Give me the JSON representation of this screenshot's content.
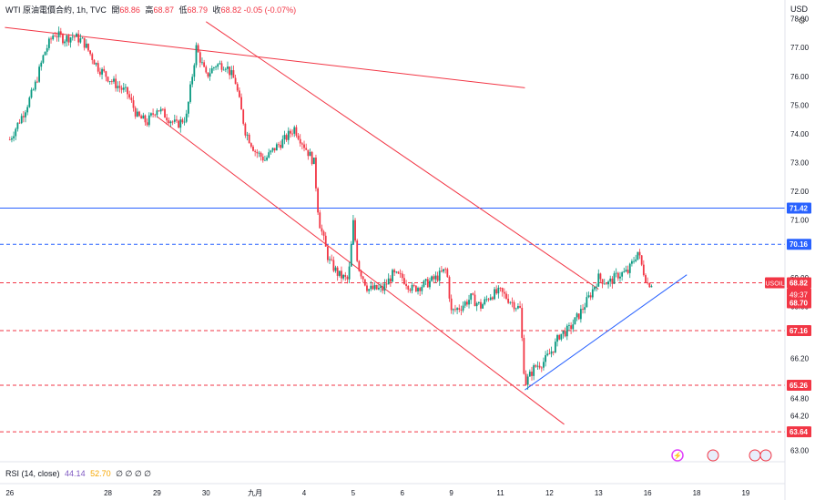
{
  "legend": {
    "symbol": "WTI 原油電價合約, 1h, TVC",
    "open_label": "開",
    "open": "68.86",
    "high_label": "高",
    "high": "68.87",
    "low_label": "低",
    "low": "68.79",
    "close_label": "收",
    "close": "68.82",
    "change": "-0.05 (-0.07%)"
  },
  "currency": "USD",
  "rsi": {
    "label": "RSI (14, close)",
    "value": "44.14",
    "ma": "52.70",
    "zeros": "∅ ∅ ∅ ∅"
  },
  "colors": {
    "up": "#089981",
    "down": "#f23645",
    "trend": "#f23645",
    "support": "#2962ff",
    "level_blue": "#2962ff"
  },
  "chart_data": {
    "type": "candlestick",
    "title": "WTI 原油電價合約, 1h, TVC",
    "ylim": [
      62.6,
      78.4
    ],
    "y_ticks": [
      "78.00",
      "77.00",
      "76.00",
      "75.00",
      "74.00",
      "73.00",
      "72.00",
      "71.00",
      "69.00",
      "68.00",
      "66.20",
      "64.80",
      "64.20",
      "63.00"
    ],
    "x_labels": [
      {
        "label": "26",
        "x": 0
      },
      {
        "label": "28",
        "x": 2
      },
      {
        "label": "29",
        "x": 3
      },
      {
        "label": "30",
        "x": 4
      },
      {
        "label": "九月",
        "x": 5
      },
      {
        "label": "4",
        "x": 6
      },
      {
        "label": "5",
        "x": 7
      },
      {
        "label": "6",
        "x": 8
      },
      {
        "label": "9",
        "x": 9
      },
      {
        "label": "11",
        "x": 10
      },
      {
        "label": "12",
        "x": 11
      },
      {
        "label": "13",
        "x": 12
      },
      {
        "label": "16",
        "x": 13
      },
      {
        "label": "18",
        "x": 14
      },
      {
        "label": "19",
        "x": 15
      }
    ],
    "price_path": [
      [
        0.0,
        73.8
      ],
      [
        0.3,
        74.8
      ],
      [
        0.5,
        75.6
      ],
      [
        0.7,
        76.8
      ],
      [
        0.9,
        77.5
      ],
      [
        1.1,
        77.3
      ],
      [
        1.3,
        77.4
      ],
      [
        1.5,
        77.2
      ],
      [
        1.8,
        76.3
      ],
      [
        2.1,
        75.8
      ],
      [
        2.4,
        75.4
      ],
      [
        2.6,
        74.6
      ],
      [
        2.8,
        74.4
      ],
      [
        3.0,
        74.9
      ],
      [
        3.2,
        74.6
      ],
      [
        3.4,
        74.3
      ],
      [
        3.6,
        74.6
      ],
      [
        3.8,
        77.0
      ],
      [
        4.0,
        76.0
      ],
      [
        4.2,
        76.4
      ],
      [
        4.4,
        76.4
      ],
      [
        4.6,
        75.8
      ],
      [
        4.8,
        74.1
      ],
      [
        5.0,
        73.4
      ],
      [
        5.2,
        73.1
      ],
      [
        5.4,
        73.5
      ],
      [
        5.6,
        73.8
      ],
      [
        5.8,
        74.2
      ],
      [
        6.0,
        73.6
      ],
      [
        6.2,
        73.0
      ],
      [
        6.3,
        71.0
      ],
      [
        6.5,
        69.6
      ],
      [
        6.7,
        69.1
      ],
      [
        6.9,
        68.9
      ],
      [
        7.0,
        70.9
      ],
      [
        7.1,
        69.4
      ],
      [
        7.3,
        68.6
      ],
      [
        7.6,
        68.6
      ],
      [
        7.8,
        69.1
      ],
      [
        8.0,
        69.0
      ],
      [
        8.2,
        68.6
      ],
      [
        8.5,
        68.8
      ],
      [
        8.7,
        69.0
      ],
      [
        8.9,
        69.3
      ],
      [
        9.0,
        67.8
      ],
      [
        9.2,
        68.0
      ],
      [
        9.4,
        68.3
      ],
      [
        9.6,
        68.0
      ],
      [
        9.8,
        68.4
      ],
      [
        10.0,
        68.5
      ],
      [
        10.2,
        68.2
      ],
      [
        10.4,
        67.9
      ],
      [
        10.5,
        65.3
      ],
      [
        10.7,
        65.9
      ],
      [
        10.9,
        66.1
      ],
      [
        11.1,
        66.6
      ],
      [
        11.2,
        67.0
      ],
      [
        11.4,
        67.2
      ],
      [
        11.6,
        67.7
      ],
      [
        11.8,
        68.3
      ],
      [
        12.0,
        69.0
      ],
      [
        12.2,
        68.8
      ],
      [
        12.4,
        69.1
      ],
      [
        12.6,
        69.2
      ],
      [
        12.8,
        69.9
      ],
      [
        12.9,
        69.3
      ],
      [
        13.0,
        68.8
      ],
      [
        13.1,
        68.82
      ]
    ],
    "h_levels": [
      {
        "value": 71.42,
        "label": "71.42",
        "style": "solid",
        "color": "#2962ff"
      },
      {
        "value": 70.16,
        "label": "70.16",
        "style": "dashed",
        "color": "#2962ff"
      },
      {
        "value": 68.82,
        "label": "68.82",
        "style": "dashed",
        "color": "#f23645"
      },
      {
        "value": 67.16,
        "label": "67.16",
        "style": "dashed",
        "color": "#f23645"
      },
      {
        "value": 65.26,
        "label": "65.26",
        "style": "dashed",
        "color": "#f23645"
      },
      {
        "value": 63.64,
        "label": "63.64",
        "style": "dashed",
        "color": "#f23645"
      }
    ],
    "price_tag": {
      "symbol": "USOIL",
      "price": "68.82",
      "countdown": "49:37",
      "bid": "68.70"
    },
    "trendlines": [
      {
        "from": [
          -0.1,
          77.7
        ],
        "to": [
          10.5,
          75.6
        ],
        "color": "#f23645"
      },
      {
        "from": [
          4.0,
          77.9
        ],
        "to": [
          12.0,
          68.6
        ],
        "color": "#f23645"
      },
      {
        "from": [
          3.0,
          74.6
        ],
        "to": [
          11.3,
          63.9
        ],
        "color": "#f23645"
      },
      {
        "from": [
          10.5,
          65.1
        ],
        "to": [
          13.8,
          69.1
        ],
        "color": "#2962ff"
      }
    ]
  }
}
